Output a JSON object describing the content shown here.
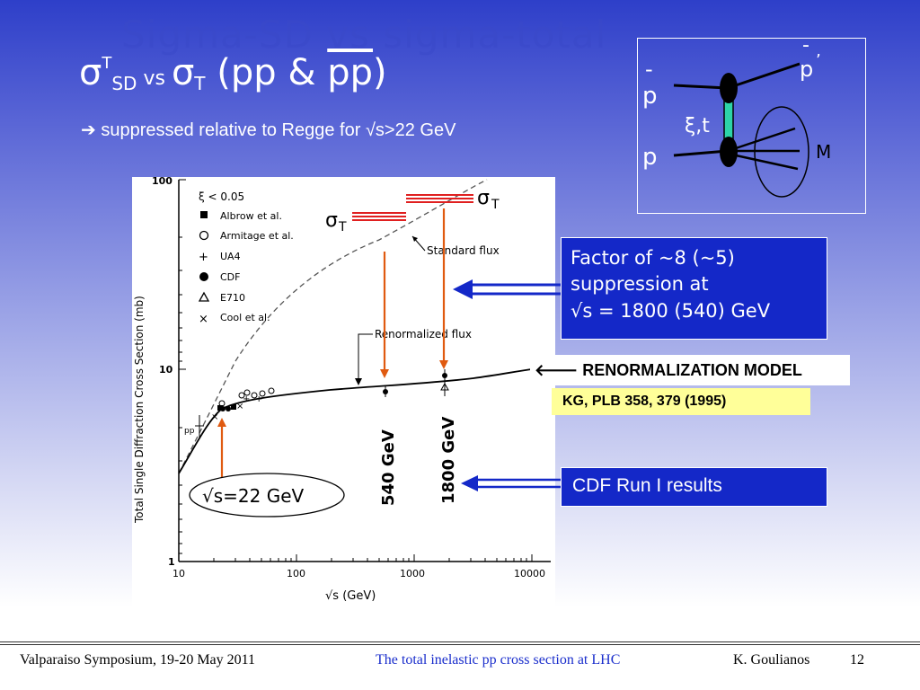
{
  "slide": {
    "ghost_title": "Sigma-SD vs sigma-total",
    "title": {
      "sigma1": "σ",
      "sup": "T",
      "sub1": "SD",
      "vs": " vs ",
      "sigma2": "σ",
      "sub2": "T",
      "rest_prefix": " (pp & ",
      "pbar": "pp",
      "rest_suffix": ")"
    },
    "subtitle": {
      "arrow": "➔",
      "text": "suppressed relative to Regge for √s>22 GeV"
    },
    "diagram": {
      "pbar_top": "p",
      "p_bottom": "p",
      "pbar_prime": "p",
      "prime": "’",
      "xi_t": "ξ,t",
      "M": "M"
    },
    "plot": {
      "sigma_T_left": "σ",
      "sigma_T_left_sub": "T",
      "sigma_T_right": "σ",
      "sigma_T_right_sub": "T",
      "standard_flux": "Standard flux",
      "renormalized_flux": "Renormalized flux",
      "label_540": "540 GeV",
      "label_1800": "1800 GeV",
      "sqrt_s_22": "√s=22 GeV",
      "ylabel": "Total Single Diffraction Cross Section (mb)",
      "xlabel": "√s (GeV)",
      "yticks": [
        "100",
        "10",
        "1"
      ],
      "xticks": [
        "10",
        "100",
        "1000",
        "10000"
      ],
      "legend": {
        "xi_cut": "ξ  <  0.05",
        "items": [
          "Albrow et al.",
          "Armitage et al.",
          "UA4",
          "CDF",
          "E710",
          "Cool et al."
        ],
        "pp_tag": "pp"
      }
    },
    "factor_box": {
      "line1": "Factor of ~8 (~5)",
      "line2": "suppression at",
      "line3": "√s = 1800 (540) GeV"
    },
    "renorm_model": "🡐 RENORMALIZATION MODEL",
    "kg_ref": "KG, PLB 358, 379  (1995)",
    "cdf_results": "CDF Run I results",
    "footer": {
      "left": "Valparaiso Symposium, 19-20 May 2011",
      "center": "The total inelastic pp cross section at LHC",
      "author": "K. Goulianos",
      "page": "12"
    },
    "colors": {
      "accent_blue": "#1428c8",
      "red_line": "#e02020",
      "arrow_orange": "#e05a10",
      "footer_link": "#1a2ecc"
    }
  }
}
